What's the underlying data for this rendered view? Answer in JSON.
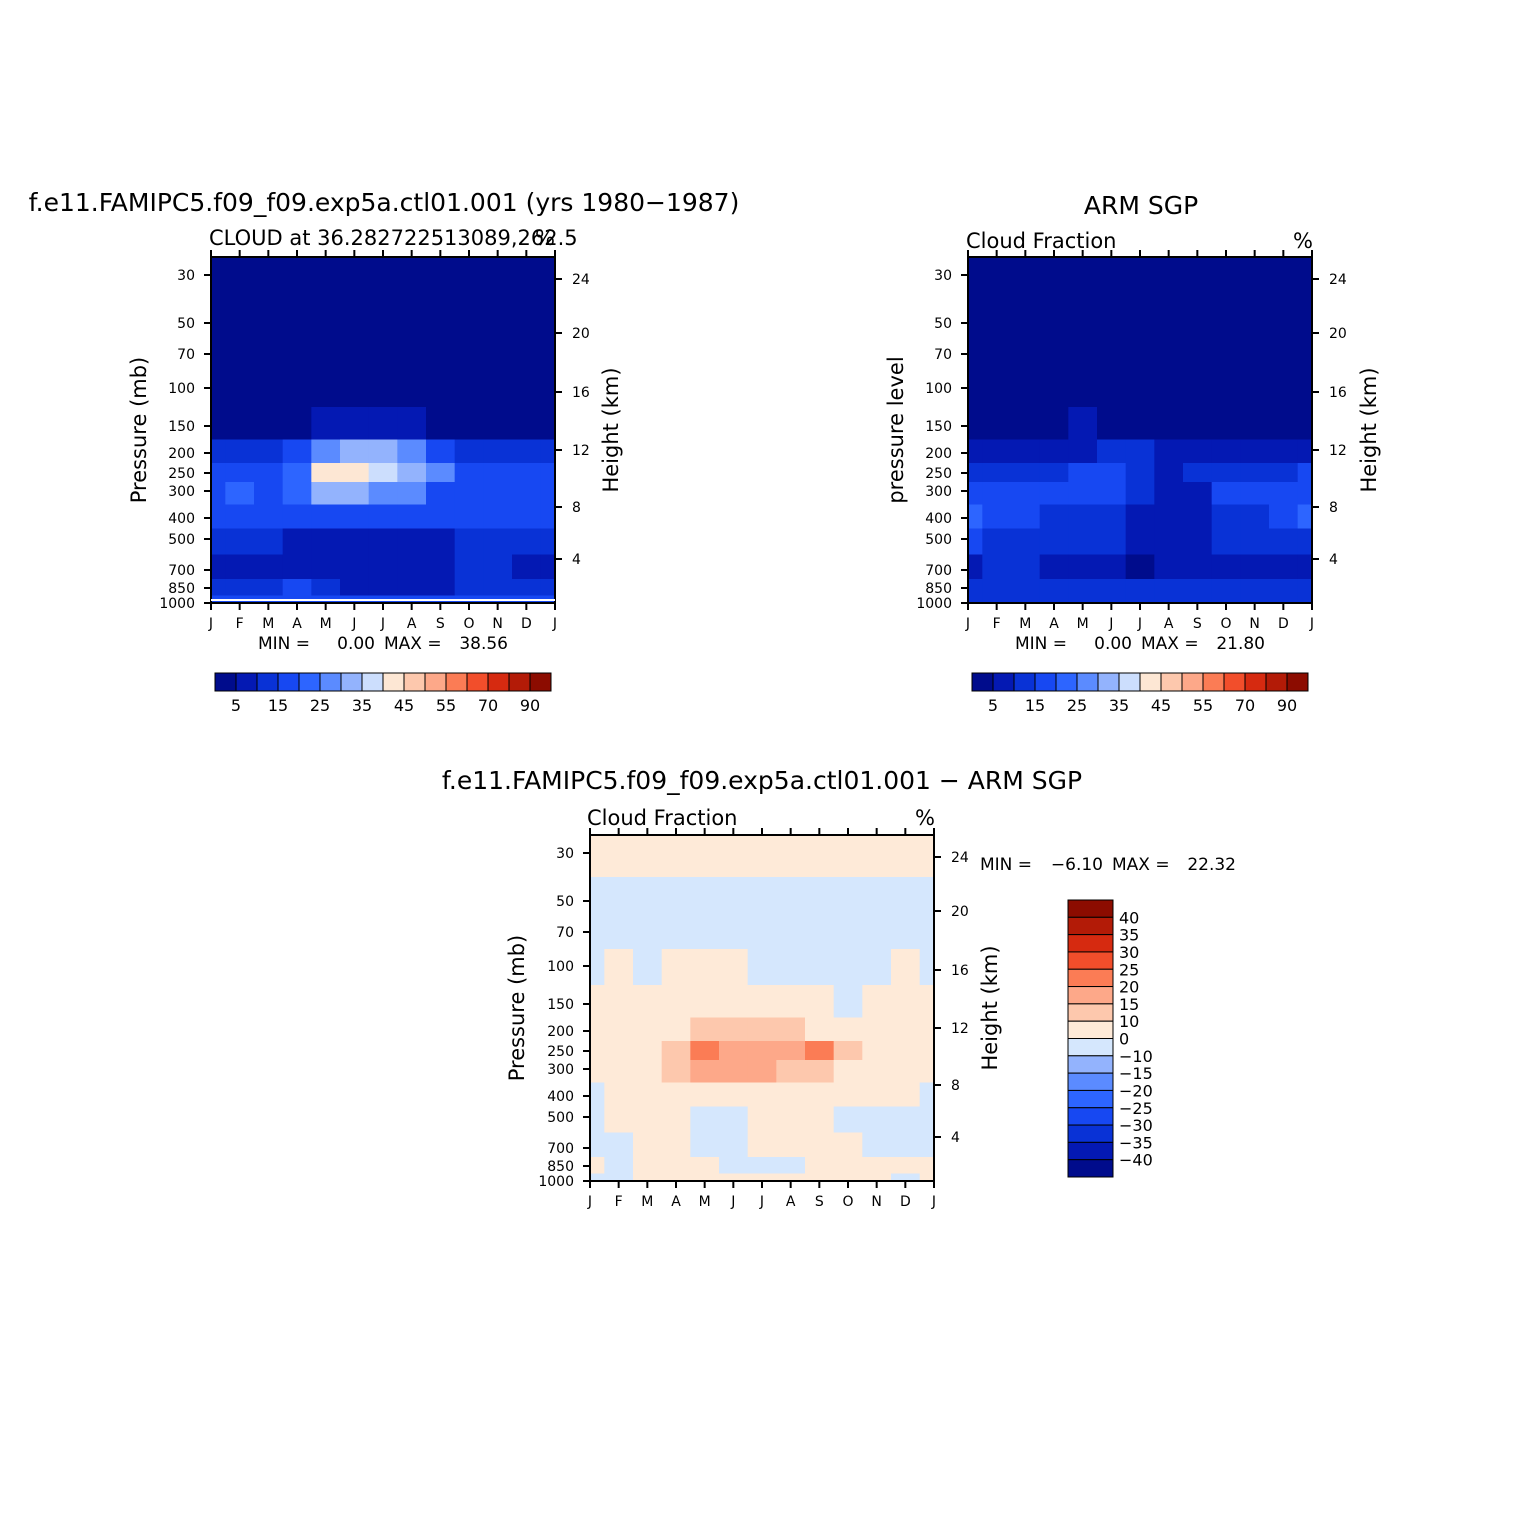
{
  "palettes": {
    "absolute": [
      "#000c8c",
      "#0419b3",
      "#0932d6",
      "#1748f2",
      "#2d65ff",
      "#5b8bff",
      "#93b3fd",
      "#ccdefd",
      "#fde7d4",
      "#fdc8ad",
      "#fda889",
      "#fb7c55",
      "#f24e2b",
      "#d62a10",
      "#b31b07",
      "#8c0c00"
    ],
    "difference": [
      "#000c8c",
      "#0419b3",
      "#0932d6",
      "#1748f2",
      "#2d65ff",
      "#5b8bff",
      "#93b3fd",
      "#d5e7fd",
      "#feead8",
      "#fdc8ad",
      "#fda889",
      "#fb7c55",
      "#f24e2b",
      "#d62a10",
      "#b31b07",
      "#8c0c00"
    ]
  },
  "chart_data": [
    {
      "id": "model",
      "type": "heatmap",
      "title": "f.e11.FAMIPC5.f09_f09.exp5a.ctl01.001 (yrs 1980−1987)",
      "subtitle_left": "CLOUD at 36.282722513089,262.5",
      "subtitle_right": "%",
      "ylabel": "Pressure (mb)",
      "ylabel_right": "Height (km)",
      "x_ticks": [
        "J",
        "F",
        "M",
        "A",
        "M",
        "J",
        "J",
        "A",
        "S",
        "O",
        "N",
        "D",
        "J"
      ],
      "y_ticks": [
        "30",
        "50",
        "70",
        "100",
        "150",
        "200",
        "250",
        "300",
        "400",
        "500",
        "700",
        "850",
        "1000"
      ],
      "y_ticks_right": [
        "24",
        "20",
        "16",
        "12",
        "8",
        "4"
      ],
      "stats": {
        "min_label": "MIN =",
        "min": "0.00",
        "max_label": "MAX =",
        "max": "38.56"
      },
      "colorbar_labels": [
        "5",
        "15",
        "25",
        "35",
        "45",
        "55",
        "70",
        "90"
      ],
      "pressure": [
        30,
        50,
        70,
        100,
        150,
        200,
        250,
        300,
        400,
        500,
        700,
        850,
        1000
      ],
      "grid": [
        [
          0,
          0,
          0,
          0,
          0,
          0,
          0,
          0,
          0,
          0,
          0,
          0,
          0
        ],
        [
          0,
          0,
          0,
          0,
          0,
          0,
          0,
          0,
          0,
          0,
          0,
          0,
          0
        ],
        [
          0,
          0,
          0,
          0,
          0,
          0,
          0,
          0,
          0,
          0,
          0,
          0,
          0
        ],
        [
          0,
          0,
          0,
          0,
          0,
          0,
          0,
          0,
          0,
          0,
          0,
          0,
          0
        ],
        [
          0,
          0,
          0,
          0,
          1,
          1,
          1,
          1,
          0,
          0,
          0,
          0,
          0
        ],
        [
          2,
          2,
          2,
          3,
          5,
          6,
          6,
          5,
          3,
          2,
          2,
          2,
          2
        ],
        [
          3,
          3,
          3,
          4,
          8,
          8,
          7,
          6,
          5,
          3,
          3,
          3,
          3
        ],
        [
          3,
          4,
          3,
          4,
          6,
          6,
          5,
          5,
          3,
          3,
          3,
          3,
          3
        ],
        [
          3,
          3,
          3,
          3,
          3,
          3,
          3,
          3,
          3,
          3,
          3,
          3,
          3
        ],
        [
          2,
          2,
          2,
          1,
          1,
          1,
          1,
          1,
          1,
          2,
          2,
          2,
          2
        ],
        [
          1,
          1,
          1,
          1,
          1,
          1,
          1,
          1,
          1,
          2,
          2,
          1,
          1
        ],
        [
          2,
          2,
          2,
          3,
          2,
          1,
          1,
          1,
          1,
          2,
          2,
          2,
          2
        ],
        [
          3,
          3,
          3,
          3,
          3,
          3,
          3,
          3,
          3,
          3,
          3,
          3,
          3
        ]
      ]
    },
    {
      "id": "obs",
      "type": "heatmap",
      "title": "ARM SGP",
      "subtitle_left": "Cloud Fraction",
      "subtitle_right": "%",
      "ylabel": "pressure level",
      "ylabel_right": "Height (km)",
      "x_ticks": [
        "J",
        "F",
        "M",
        "A",
        "M",
        "J",
        "J",
        "A",
        "S",
        "O",
        "N",
        "D",
        "J"
      ],
      "y_ticks": [
        "30",
        "50",
        "70",
        "100",
        "150",
        "200",
        "250",
        "300",
        "400",
        "500",
        "700",
        "850",
        "1000"
      ],
      "y_ticks_right": [
        "24",
        "20",
        "16",
        "12",
        "8",
        "4"
      ],
      "stats": {
        "min_label": "MIN =",
        "min": "0.00",
        "max_label": "MAX =",
        "max": "21.80"
      },
      "colorbar_labels": [
        "5",
        "15",
        "25",
        "35",
        "45",
        "55",
        "70",
        "90"
      ],
      "pressure": [
        30,
        50,
        70,
        100,
        150,
        200,
        250,
        300,
        400,
        500,
        700,
        850,
        1000
      ],
      "grid": [
        [
          0,
          0,
          0,
          0,
          0,
          0,
          0,
          0,
          0,
          0,
          0,
          0,
          0
        ],
        [
          0,
          0,
          0,
          0,
          0,
          0,
          0,
          0,
          0,
          0,
          0,
          0,
          0
        ],
        [
          0,
          0,
          0,
          0,
          0,
          0,
          0,
          0,
          0,
          0,
          0,
          0,
          0
        ],
        [
          0,
          0,
          0,
          0,
          0,
          0,
          0,
          0,
          0,
          0,
          0,
          0,
          0
        ],
        [
          0,
          0,
          0,
          0,
          1,
          0,
          0,
          0,
          0,
          0,
          0,
          0,
          0
        ],
        [
          1,
          1,
          1,
          1,
          1,
          2,
          2,
          1,
          1,
          1,
          1,
          1,
          1
        ],
        [
          2,
          2,
          2,
          2,
          3,
          3,
          2,
          1,
          2,
          2,
          2,
          2,
          3
        ],
        [
          3,
          3,
          3,
          3,
          3,
          3,
          2,
          1,
          1,
          3,
          3,
          3,
          3
        ],
        [
          4,
          3,
          3,
          2,
          2,
          2,
          1,
          1,
          1,
          2,
          2,
          3,
          4
        ],
        [
          3,
          2,
          2,
          2,
          2,
          2,
          1,
          1,
          1,
          2,
          2,
          2,
          2
        ],
        [
          1,
          2,
          2,
          1,
          1,
          1,
          0,
          1,
          1,
          1,
          1,
          1,
          1
        ],
        [
          2,
          2,
          2,
          2,
          2,
          2,
          2,
          2,
          2,
          2,
          2,
          2,
          2
        ],
        [
          2,
          2,
          2,
          2,
          2,
          2,
          2,
          2,
          2,
          2,
          2,
          2,
          2
        ]
      ]
    },
    {
      "id": "diff",
      "type": "heatmap",
      "title": "f.e11.FAMIPC5.f09_f09.exp5a.ctl01.001 − ARM SGP",
      "subtitle_left": "Cloud Fraction",
      "subtitle_right": "%",
      "ylabel": "Pressure (mb)",
      "ylabel_right": "Height (km)",
      "x_ticks": [
        "J",
        "F",
        "M",
        "A",
        "M",
        "J",
        "J",
        "A",
        "S",
        "O",
        "N",
        "D",
        "J"
      ],
      "y_ticks": [
        "30",
        "50",
        "70",
        "100",
        "150",
        "200",
        "250",
        "300",
        "400",
        "500",
        "700",
        "850",
        "1000"
      ],
      "y_ticks_right": [
        "24",
        "20",
        "16",
        "12",
        "8",
        "4"
      ],
      "stats": {
        "min_label": "MIN =",
        "min": "−6.10",
        "max_label": "MAX =",
        "max": "22.32"
      },
      "colorbar_labels": [
        "40",
        "35",
        "30",
        "25",
        "20",
        "15",
        "10",
        "0",
        "−10",
        "−15",
        "−20",
        "−25",
        "−30",
        "−35",
        "−40"
      ],
      "pressure": [
        30,
        50,
        70,
        100,
        150,
        200,
        250,
        300,
        400,
        500,
        700,
        850,
        1000
      ],
      "grid": [
        [
          8,
          8,
          8,
          8,
          8,
          8,
          8,
          8,
          8,
          8,
          8,
          8,
          8
        ],
        [
          7,
          7,
          7,
          7,
          7,
          7,
          7,
          7,
          7,
          7,
          7,
          7,
          7
        ],
        [
          7,
          7,
          7,
          7,
          7,
          7,
          7,
          7,
          7,
          7,
          7,
          7,
          7
        ],
        [
          7,
          8,
          7,
          8,
          8,
          8,
          7,
          7,
          7,
          7,
          7,
          8,
          7
        ],
        [
          8,
          8,
          8,
          8,
          8,
          8,
          8,
          8,
          8,
          7,
          8,
          8,
          8
        ],
        [
          8,
          8,
          8,
          8,
          9,
          9,
          9,
          9,
          8,
          8,
          8,
          8,
          8
        ],
        [
          8,
          8,
          8,
          9,
          11,
          10,
          10,
          10,
          11,
          9,
          8,
          8,
          8
        ],
        [
          8,
          8,
          8,
          9,
          10,
          10,
          10,
          9,
          9,
          8,
          8,
          8,
          8
        ],
        [
          7,
          8,
          8,
          8,
          8,
          8,
          8,
          8,
          8,
          8,
          8,
          8,
          7
        ],
        [
          7,
          8,
          8,
          8,
          7,
          7,
          8,
          8,
          8,
          7,
          7,
          7,
          7
        ],
        [
          7,
          7,
          8,
          8,
          7,
          7,
          8,
          8,
          8,
          8,
          7,
          7,
          7
        ],
        [
          8,
          7,
          8,
          8,
          8,
          7,
          7,
          7,
          8,
          8,
          8,
          8,
          8
        ],
        [
          7,
          7,
          8,
          8,
          8,
          8,
          8,
          8,
          8,
          8,
          8,
          7,
          8
        ]
      ]
    }
  ]
}
